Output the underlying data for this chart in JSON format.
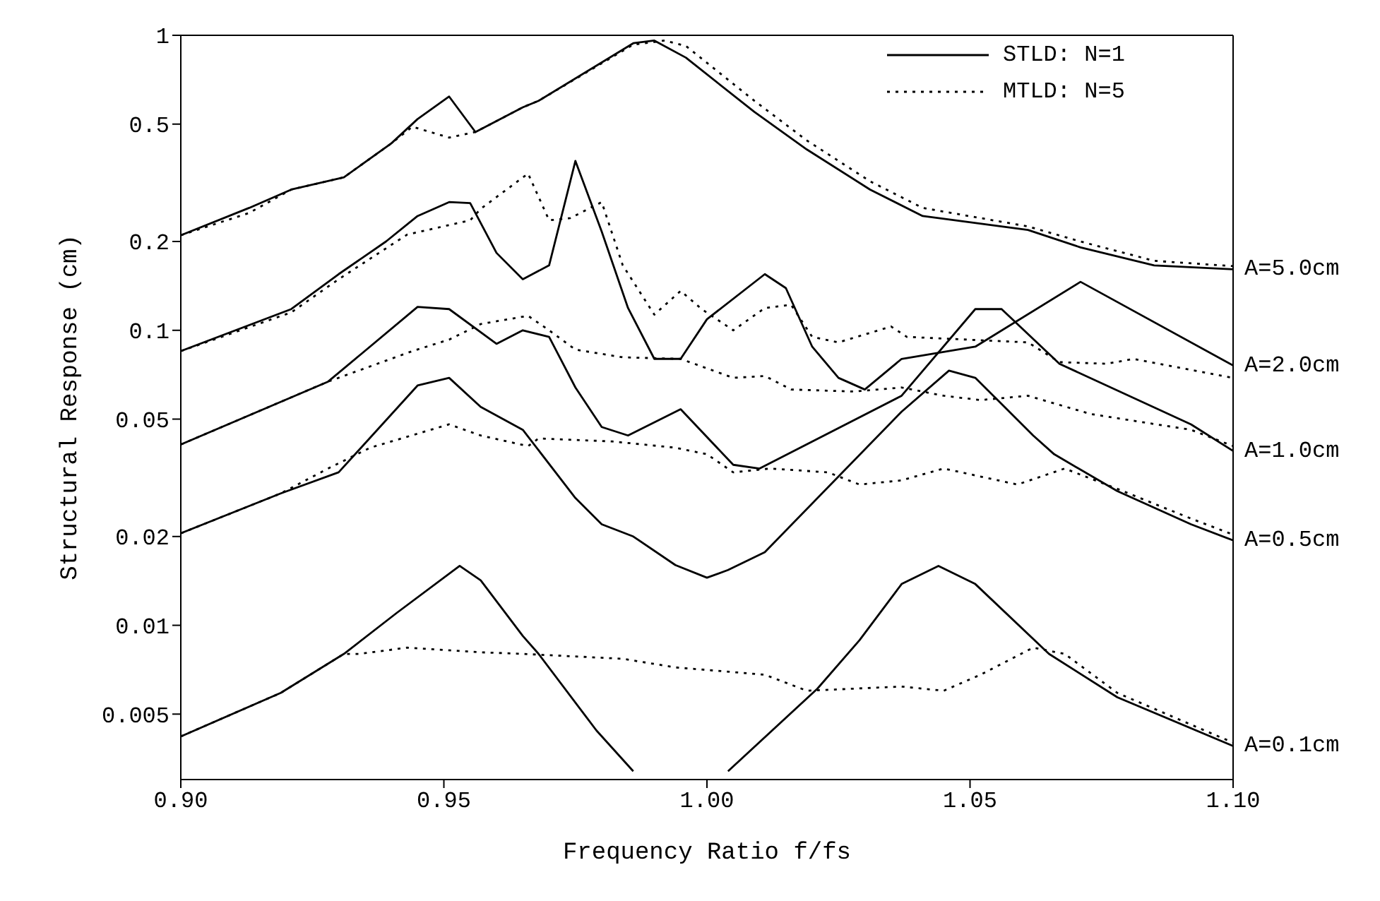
{
  "chart_data": {
    "type": "line",
    "xlabel": "Frequency Ratio f/fs",
    "ylabel": "Structural Response (cm)",
    "log": "y",
    "legend": "top right",
    "xlim": [
      0.9,
      1.1
    ],
    "xticks": [
      {
        "value": 0.9,
        "label": "0.90"
      },
      0.95,
      {
        "value": 1.0,
        "label": "1.00"
      },
      1.05,
      {
        "value": 1.1,
        "label": "1.10"
      }
    ],
    "ylim": [
      0.003,
      1
    ],
    "yticks": [
      0.005,
      0.01,
      0.02,
      0.05,
      0.1,
      0.2,
      0.5,
      1
    ],
    "annotations": [
      "A=5.0cm",
      "A=2.0cm",
      "A=1.0cm",
      "A=0.5cm",
      "A=0.1cm"
    ],
    "series": [
      {
        "name": "STLD: N=1",
        "color": "#000000",
        "line_style": "solid",
        "x": [
          0.9,
          0.913,
          0.921,
          0.931,
          0.94,
          0.945,
          0.951,
          0.956,
          0.965,
          0.968,
          0.986,
          0.99,
          0.996,
          1.009,
          1.019,
          1.031,
          1.041,
          1.061,
          1.071,
          1.085,
          1.1
        ],
        "values": [
          0.21,
          0.26,
          0.3,
          0.33,
          0.43,
          0.52,
          0.62,
          0.47,
          0.57,
          0.6,
          0.94,
          0.96,
          0.84,
          0.55,
          0.41,
          0.3,
          0.244,
          0.219,
          0.191,
          0.166,
          0.161
        ]
      },
      {
        "name": "MTLD: N=5",
        "color": "#000000",
        "line_style": "dotted",
        "x": [
          0.9,
          0.913,
          0.921,
          0.931,
          0.94,
          0.944,
          0.951,
          0.956,
          0.965,
          0.968,
          0.986,
          0.992,
          0.996,
          1.009,
          1.019,
          1.031,
          1.041,
          1.061,
          1.071,
          1.085,
          1.1
        ],
        "values": [
          0.21,
          0.25,
          0.3,
          0.33,
          0.43,
          0.49,
          0.45,
          0.47,
          0.57,
          0.6,
          0.93,
          0.96,
          0.92,
          0.6,
          0.44,
          0.32,
          0.26,
          0.225,
          0.2,
          0.172,
          0.165
        ]
      },
      {
        "color": "#000000",
        "line_style": "solid",
        "x": [
          0.9,
          0.921,
          0.93,
          0.939,
          0.945,
          0.951,
          0.955,
          0.96,
          0.965,
          0.97,
          0.975,
          0.98,
          0.985,
          0.99,
          0.995,
          1.0,
          1.011,
          1.015,
          1.02,
          1.025,
          1.03,
          1.037,
          1.051,
          1.071,
          1.1
        ],
        "values": [
          0.085,
          0.118,
          0.155,
          0.2,
          0.244,
          0.272,
          0.27,
          0.183,
          0.149,
          0.166,
          0.375,
          0.216,
          0.119,
          0.08,
          0.08,
          0.109,
          0.155,
          0.139,
          0.088,
          0.069,
          0.063,
          0.08,
          0.088,
          0.146,
          0.076
        ]
      },
      {
        "color": "#000000",
        "line_style": "dotted",
        "x": [
          0.9,
          0.921,
          0.93,
          0.943,
          0.955,
          0.957,
          0.966,
          0.97,
          0.974,
          0.98,
          0.984,
          0.99,
          0.995,
          0.999,
          1.005,
          1.011,
          1.016,
          1.02,
          1.025,
          1.035,
          1.038,
          1.061,
          1.067,
          1.076,
          1.081,
          1.1
        ],
        "values": [
          0.085,
          0.115,
          0.149,
          0.211,
          0.236,
          0.258,
          0.34,
          0.236,
          0.24,
          0.272,
          0.166,
          0.113,
          0.136,
          0.118,
          0.1,
          0.119,
          0.122,
          0.095,
          0.091,
          0.103,
          0.095,
          0.091,
          0.078,
          0.077,
          0.08,
          0.069
        ]
      },
      {
        "color": "#000000",
        "line_style": "solid",
        "x": [
          0.9,
          0.928,
          0.945,
          0.951,
          0.96,
          0.965,
          0.97,
          0.975,
          0.98,
          0.985,
          0.995,
          1.005,
          1.01,
          1.037,
          1.051,
          1.056,
          1.067,
          1.092,
          1.1
        ],
        "values": [
          0.041,
          0.067,
          0.12,
          0.118,
          0.09,
          0.1,
          0.095,
          0.064,
          0.047,
          0.044,
          0.054,
          0.035,
          0.034,
          0.06,
          0.118,
          0.118,
          0.077,
          0.048,
          0.039
        ]
      },
      {
        "color": "#000000",
        "line_style": "dotted",
        "x": [
          0.9,
          0.928,
          0.944,
          0.951,
          0.957,
          0.966,
          0.97,
          0.975,
          0.984,
          0.995,
          1.005,
          1.011,
          1.016,
          1.028,
          1.037,
          1.045,
          1.052,
          1.061,
          1.073,
          1.092,
          1.1
        ],
        "values": [
          0.041,
          0.067,
          0.085,
          0.093,
          0.105,
          0.112,
          0.1,
          0.086,
          0.081,
          0.08,
          0.069,
          0.07,
          0.063,
          0.062,
          0.064,
          0.06,
          0.058,
          0.06,
          0.052,
          0.046,
          0.0405
        ]
      },
      {
        "color": "#000000",
        "line_style": "solid",
        "x": [
          0.9,
          0.919,
          0.93,
          0.945,
          0.951,
          0.957,
          0.965,
          0.975,
          0.98,
          0.986,
          0.994,
          1.0,
          1.004,
          1.011,
          1.037,
          1.046,
          1.051,
          1.062,
          1.066,
          1.078,
          1.092,
          1.1
        ],
        "values": [
          0.0205,
          0.028,
          0.033,
          0.065,
          0.069,
          0.055,
          0.046,
          0.027,
          0.022,
          0.02,
          0.016,
          0.0145,
          0.0154,
          0.0177,
          0.053,
          0.073,
          0.069,
          0.044,
          0.038,
          0.0285,
          0.022,
          0.0194
        ]
      },
      {
        "color": "#000000",
        "line_style": "dotted",
        "x": [
          0.9,
          0.919,
          0.928,
          0.936,
          0.951,
          0.957,
          0.966,
          0.968,
          0.982,
          0.994,
          1.0,
          1.005,
          1.012,
          1.023,
          1.029,
          1.037,
          1.045,
          1.059,
          1.068,
          1.078,
          1.092,
          1.1
        ],
        "values": [
          0.0205,
          0.028,
          0.034,
          0.04,
          0.048,
          0.044,
          0.0405,
          0.043,
          0.042,
          0.04,
          0.038,
          0.033,
          0.034,
          0.033,
          0.03,
          0.031,
          0.034,
          0.03,
          0.034,
          0.029,
          0.023,
          0.0203
        ]
      },
      {
        "color": "#000000",
        "line_style": "solid",
        "x": [
          0.9,
          0.919,
          0.931,
          0.941,
          0.953,
          0.957,
          0.965,
          0.968,
          0.979,
          0.986,
          0.995,
          1.004,
          1.021,
          1.029,
          1.037,
          1.044,
          1.051,
          1.065,
          1.078,
          1.1
        ],
        "values": [
          0.0042,
          0.0059,
          0.008,
          0.011,
          0.0159,
          0.0142,
          0.0092,
          0.008,
          0.0044,
          0.0032,
          null,
          0.0032,
          0.0061,
          0.0089,
          0.0138,
          0.0159,
          0.0138,
          0.008,
          0.0057,
          0.0039
        ]
      },
      {
        "color": "#000000",
        "line_style": "dotted",
        "x": [
          0.9,
          0.919,
          0.931,
          0.934,
          0.943,
          0.957,
          0.965,
          0.984,
          0.994,
          1.011,
          1.019,
          1.037,
          1.045,
          1.052,
          1.062,
          1.068,
          1.078,
          1.1
        ],
        "values": [
          0.0042,
          0.0059,
          0.008,
          0.008,
          0.0084,
          0.0081,
          0.008,
          0.0077,
          0.0072,
          0.0068,
          0.006,
          0.0062,
          0.006,
          0.0068,
          0.0084,
          0.008,
          0.0059,
          0.004
        ]
      }
    ]
  }
}
